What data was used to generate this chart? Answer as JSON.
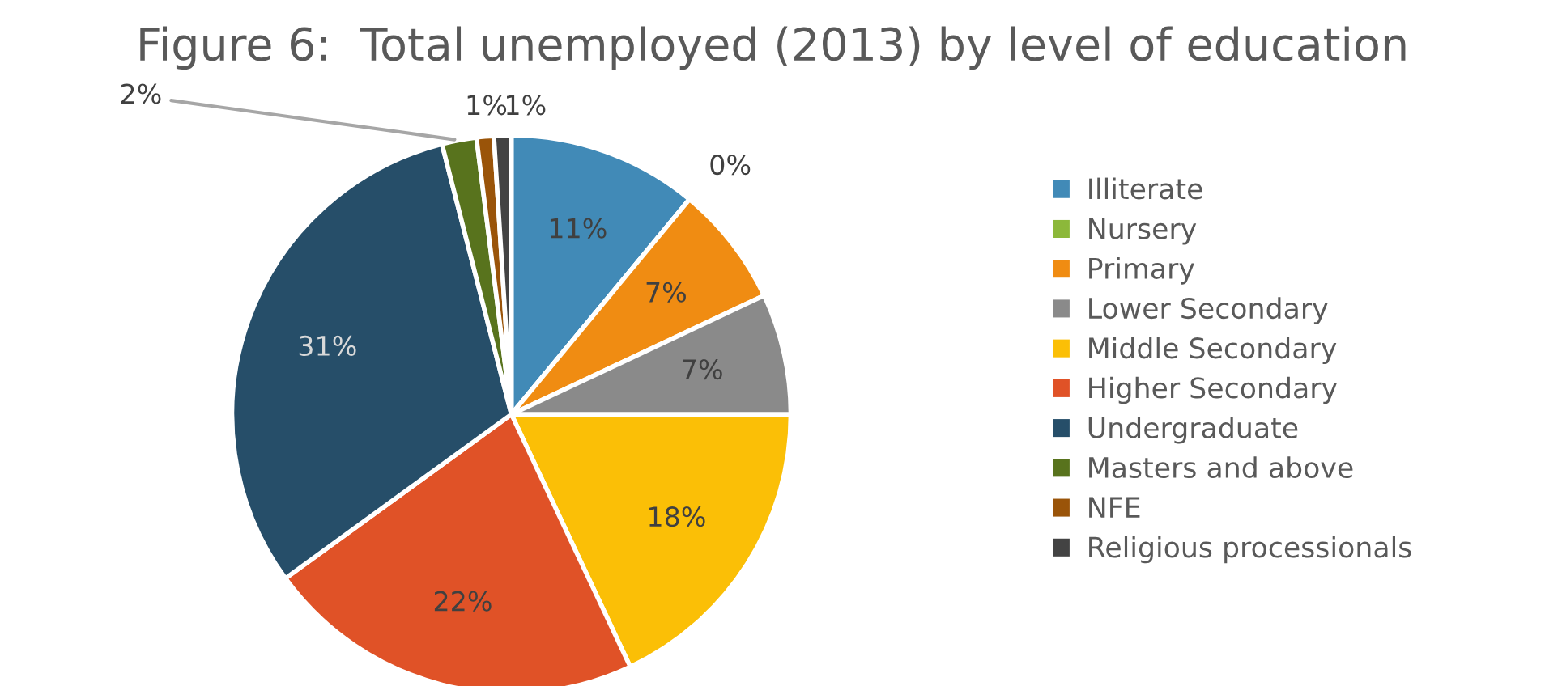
{
  "chart_data": {
    "type": "pie",
    "title": "Figure 6:  Total unemployed (2013) by level of education",
    "categories": [
      "Illiterate",
      "Nursery",
      "Primary",
      "Lower Secondary",
      "Middle Secondary",
      "Higher Secondary",
      "Undergraduate",
      "Masters and above",
      "NFE",
      "Religious processionals"
    ],
    "values": [
      11,
      0,
      7,
      7,
      18,
      22,
      31,
      2,
      1,
      1
    ],
    "value_labels": [
      "11%",
      "0%",
      "7%",
      "7%",
      "18%",
      "22%",
      "31%",
      "2%",
      "1%",
      "1%"
    ],
    "colors": [
      "#418ab7",
      "#8cb83a",
      "#f08c12",
      "#8a8a8a",
      "#fbbf06",
      "#e05227",
      "#264e69",
      "#58731d",
      "#9a5409",
      "#434343"
    ],
    "legend": "right"
  }
}
